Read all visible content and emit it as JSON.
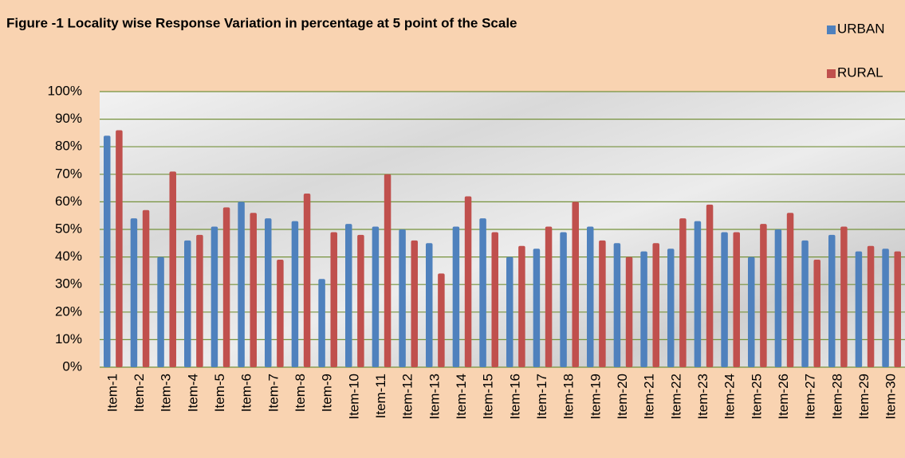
{
  "chart_data": {
    "type": "bar",
    "title": "Figure -1 Locality wise Response Variation in percentage at 5 point of the Scale",
    "categories": [
      "Item-1",
      "Item-2",
      "Item-3",
      "Item-4",
      "Item-5",
      "Item-6",
      "Item-7",
      "Item-8",
      "Item-9",
      "Item-10",
      "Item-11",
      "Item-12",
      "Item-13",
      "Item-14",
      "Item-15",
      "Item-16",
      "Item-17",
      "Item-18",
      "Item-19",
      "Item-20",
      "Item-21",
      "Item-22",
      "Item-23",
      "Item-24",
      "Item-25",
      "Item-26",
      "Item-27",
      "Item-28",
      "Item-29",
      "Item-30"
    ],
    "series": [
      {
        "name": "URBAN",
        "color": "#4f81bd",
        "values": [
          84,
          54,
          40,
          46,
          51,
          60,
          54,
          53,
          32,
          52,
          51,
          50,
          45,
          51,
          54,
          40,
          43,
          49,
          51,
          45,
          42,
          43,
          53,
          49,
          40,
          50,
          46,
          48,
          42,
          43
        ]
      },
      {
        "name": "RURAL",
        "color": "#c0504d",
        "values": [
          86,
          57,
          71,
          48,
          58,
          56,
          39,
          63,
          49,
          48,
          70,
          46,
          34,
          62,
          49,
          44,
          51,
          60,
          46,
          40,
          45,
          54,
          59,
          49,
          52,
          56,
          39,
          51,
          44,
          42
        ]
      }
    ],
    "ylim": [
      0,
      100
    ],
    "yticks": [
      {
        "value": 0,
        "label": "0%"
      },
      {
        "value": 10,
        "label": "10%"
      },
      {
        "value": 20,
        "label": "20%"
      },
      {
        "value": 30,
        "label": "30%"
      },
      {
        "value": 40,
        "label": "40%"
      },
      {
        "value": 50,
        "label": "50%"
      },
      {
        "value": 60,
        "label": "60%"
      },
      {
        "value": 70,
        "label": "70%"
      },
      {
        "value": 80,
        "label": "80%"
      },
      {
        "value": 90,
        "label": "90%"
      },
      {
        "value": 100,
        "label": "100%"
      }
    ],
    "grid": true,
    "grid_color": "#76923c",
    "legend": "top-right"
  }
}
